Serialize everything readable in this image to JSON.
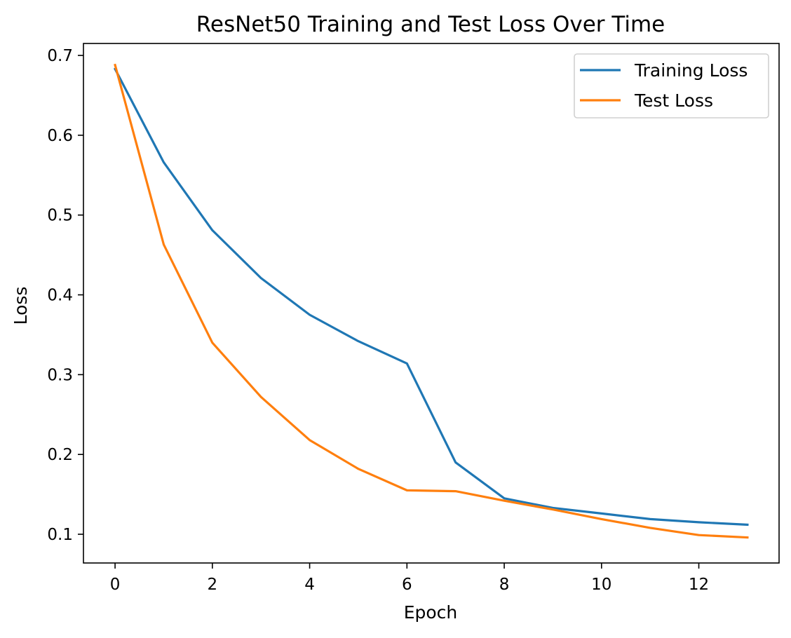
{
  "chart_data": {
    "type": "line",
    "title": "ResNet50 Training and Test Loss Over Time",
    "xlabel": "Epoch",
    "ylabel": "Loss",
    "xlim": [
      -0.65,
      13.65
    ],
    "ylim": [
      0.064,
      0.715
    ],
    "xticks": [
      0,
      2,
      4,
      6,
      8,
      10,
      12
    ],
    "yticks": [
      0.1,
      0.2,
      0.3,
      0.4,
      0.5,
      0.6,
      0.7
    ],
    "x": [
      0,
      1,
      2,
      3,
      4,
      5,
      6,
      7,
      8,
      9,
      10,
      11,
      12,
      13
    ],
    "series": [
      {
        "name": "Training Loss",
        "color": "#1f77b4",
        "values": [
          0.683,
          0.566,
          0.481,
          0.421,
          0.375,
          0.342,
          0.314,
          0.19,
          0.145,
          0.133,
          0.126,
          0.119,
          0.115,
          0.112
        ]
      },
      {
        "name": "Test Loss",
        "color": "#ff7f0e",
        "values": [
          0.688,
          0.463,
          0.34,
          0.272,
          0.218,
          0.182,
          0.155,
          0.154,
          0.142,
          0.131,
          0.119,
          0.108,
          0.099,
          0.096
        ]
      }
    ],
    "grid": false,
    "legend": {
      "position": "top-right"
    }
  }
}
